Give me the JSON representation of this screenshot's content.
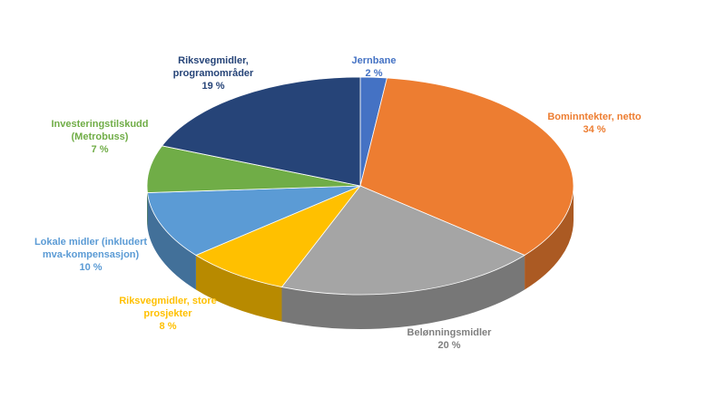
{
  "chart_data": {
    "type": "pie",
    "categories": [
      "Jernbane",
      "Bominntekter, netto",
      "Belønningsmidler",
      "Riksvegmidler, store prosjekter",
      "Lokale midler (inkludert mva-kompensasjon)",
      "Investeringstilskudd (Metrobuss)",
      "Riksvegmidler, programområder"
    ],
    "values": [
      2,
      34,
      20,
      8,
      10,
      7,
      19
    ],
    "value_labels": [
      "2 %",
      "34 %",
      "20 %",
      "8 %",
      "10 %",
      "7 %",
      "19 %"
    ],
    "colors": [
      "#4472c4",
      "#ed7d31",
      "#a5a5a5",
      "#ffc000",
      "#5b9bd5",
      "#70ad47",
      "#264478"
    ]
  }
}
